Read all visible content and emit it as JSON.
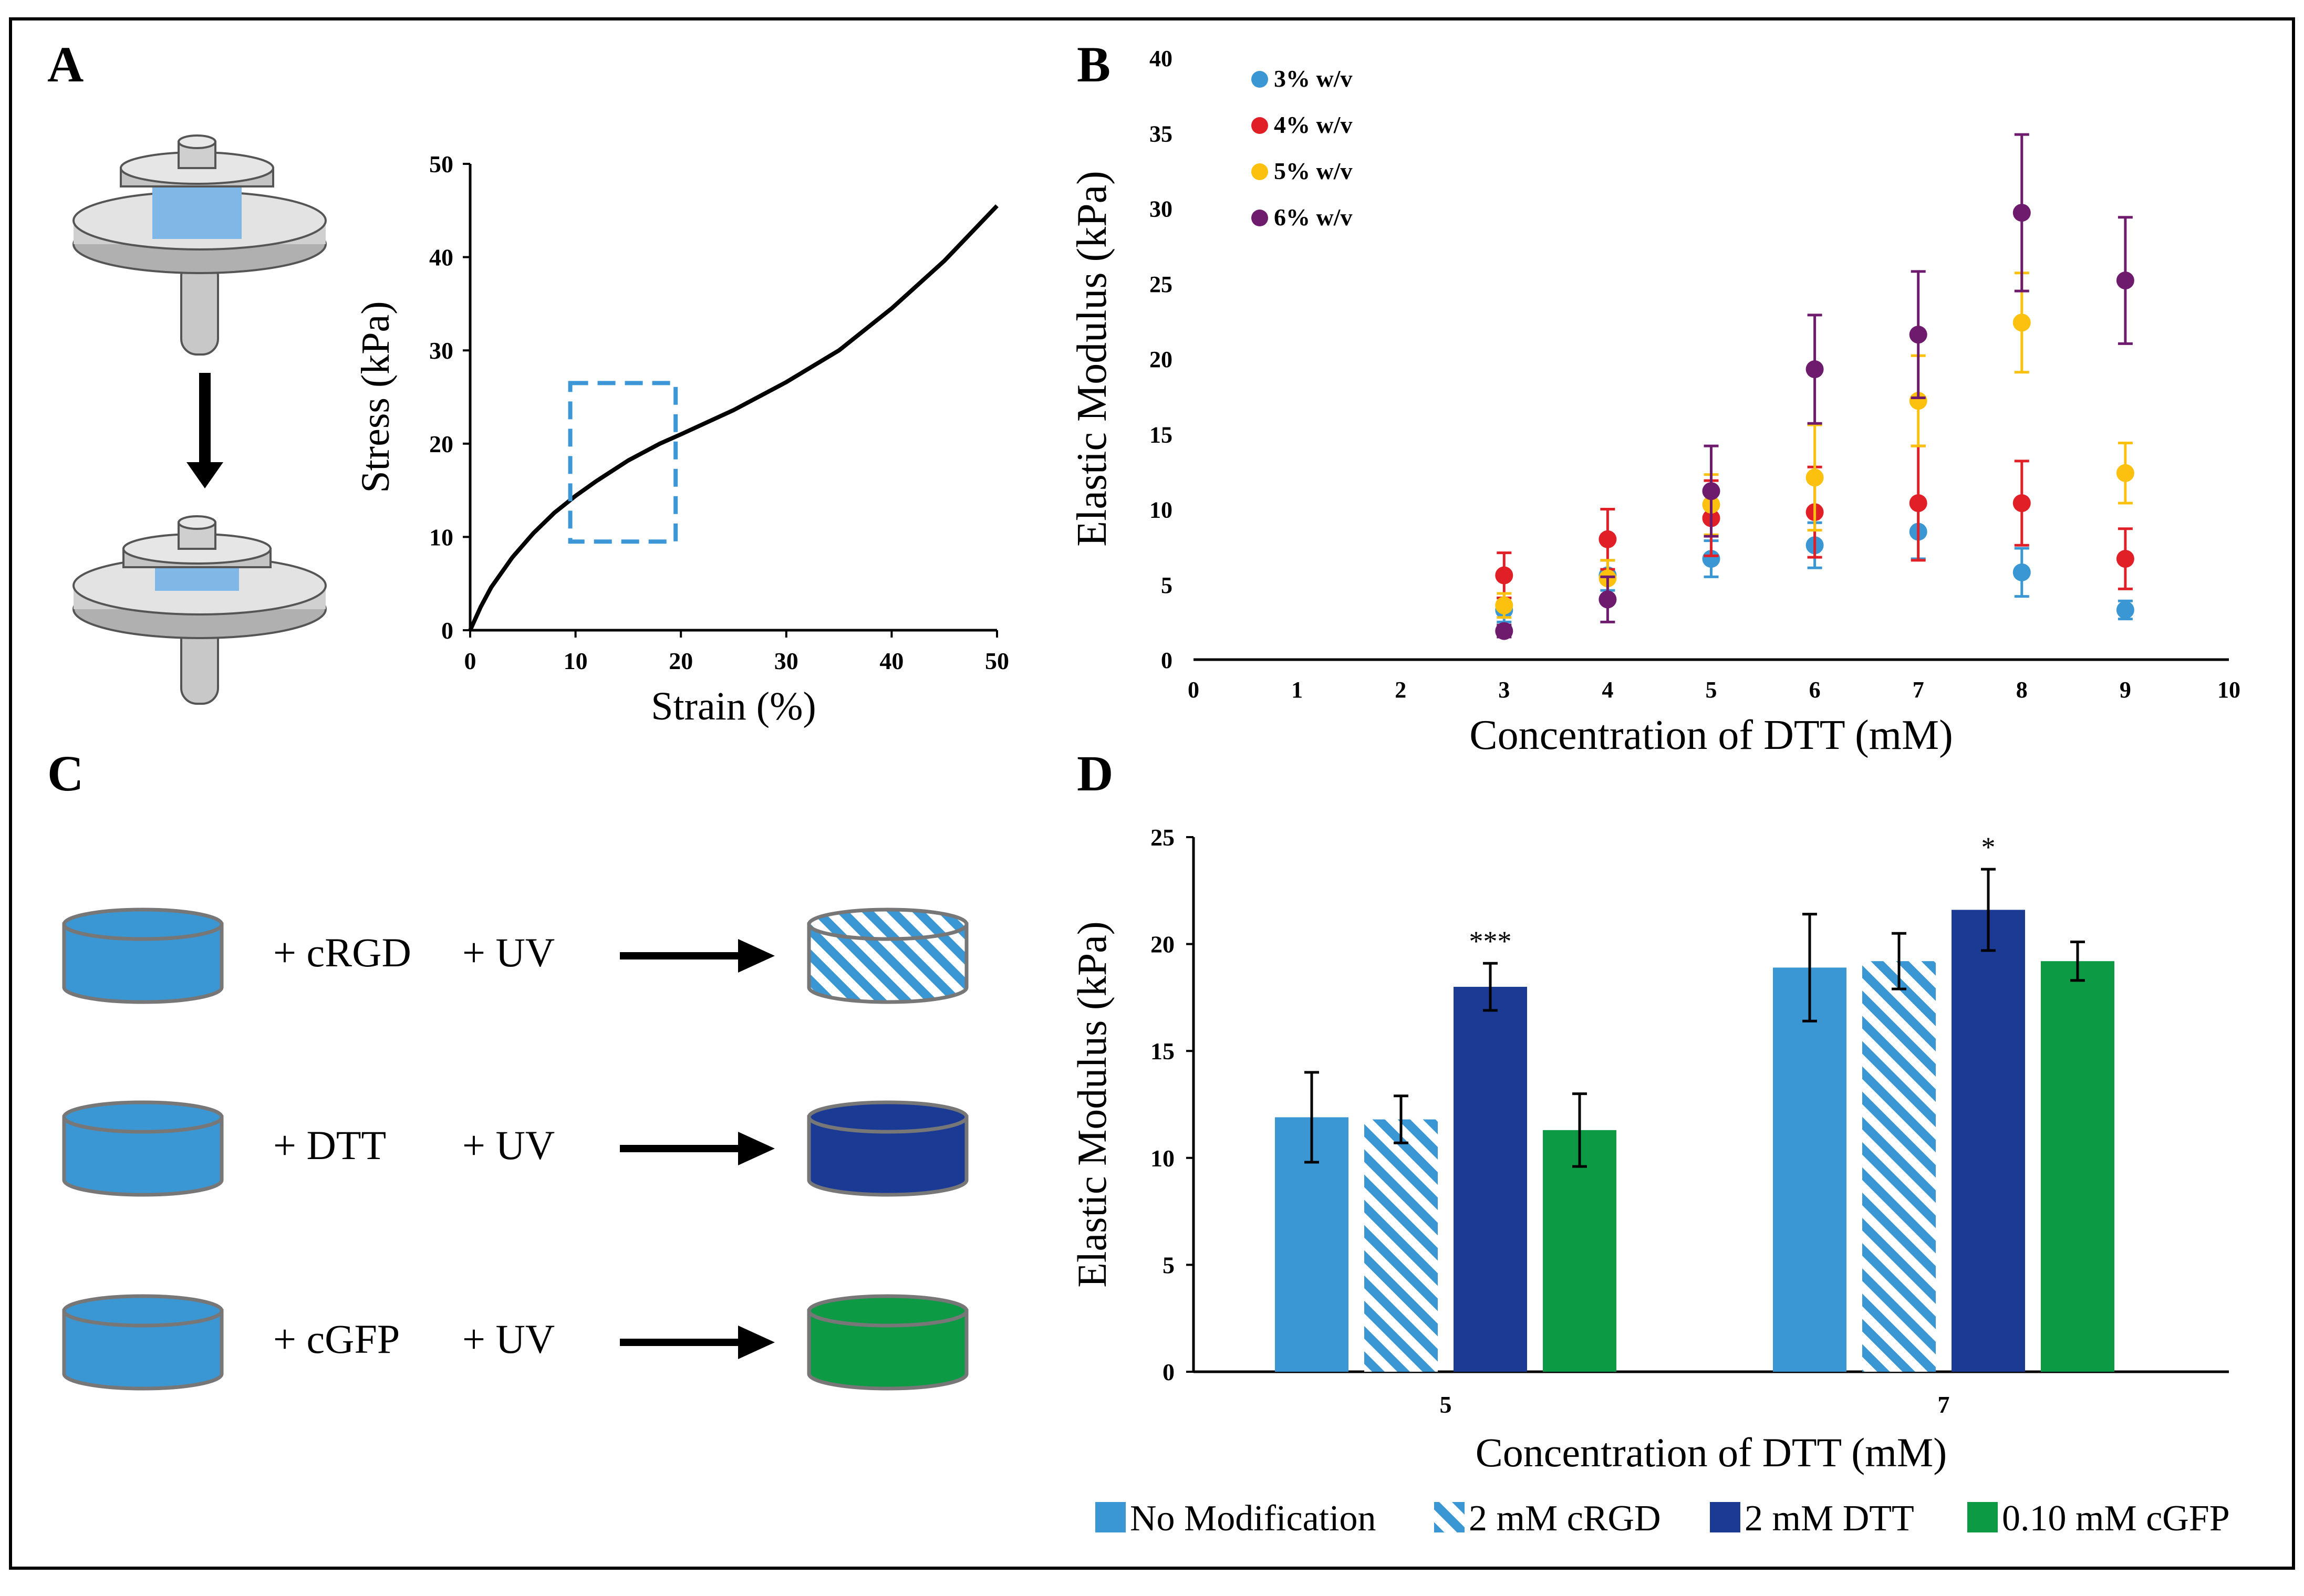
{
  "panels": {
    "A": {
      "label": "A"
    },
    "B": {
      "label": "B"
    },
    "C": {
      "label": "C"
    },
    "D": {
      "label": "D"
    }
  },
  "colors": {
    "light_blue": "#3b97d3",
    "dark_blue": "#1a3a93",
    "green": "#0c9a45",
    "red": "#e11f26",
    "yellow": "#fcc10e",
    "purple": "#6e1b6d",
    "dashed_box": "#3d97d6"
  },
  "schematic_c": {
    "rows": [
      {
        "reagent": "+ cRGD",
        "uv": "+ UV",
        "result": "hatched"
      },
      {
        "reagent": "+ DTT",
        "uv": "+ UV",
        "result": "dark_blue"
      },
      {
        "reagent": "+ cGFP",
        "uv": "+ UV",
        "result": "green"
      }
    ]
  },
  "chart_data": [
    {
      "panel": "A",
      "type": "line",
      "xlabel": "Strain (%)",
      "ylabel": "Stress (kPa)",
      "xlim": [
        0,
        50
      ],
      "ylim": [
        0,
        50
      ],
      "xticks": [
        "0",
        "10",
        "20",
        "30",
        "40",
        "50"
      ],
      "yticks": [
        "0",
        "10",
        "20",
        "30",
        "40",
        "50"
      ],
      "series": [
        {
          "name": "stress-strain",
          "x": [
            0,
            1,
            2,
            4,
            6,
            8,
            10,
            12,
            15,
            18,
            20,
            25,
            30,
            35,
            40,
            45,
            50
          ],
          "y": [
            0,
            2.5,
            4.6,
            7.8,
            10.4,
            12.6,
            14.4,
            16.0,
            18.2,
            20.0,
            21.0,
            23.6,
            26.6,
            30.0,
            34.5,
            39.6,
            45.5
          ]
        }
      ],
      "highlight_box": {
        "x": [
          9.5,
          19.5
        ],
        "y": [
          9.5,
          26.5
        ]
      }
    },
    {
      "panel": "B",
      "type": "scatter",
      "xlabel": "Concentration of DTT (mM)",
      "ylabel": "Elastic Modulus (kPa)",
      "xlim": [
        0,
        10
      ],
      "ylim": [
        0,
        40
      ],
      "xticks": [
        "0",
        "1",
        "2",
        "3",
        "4",
        "5",
        "6",
        "7",
        "8",
        "9",
        "10"
      ],
      "yticks": [
        "0",
        "5",
        "10",
        "15",
        "20",
        "25",
        "30",
        "35",
        "40"
      ],
      "legend_position": "top-left",
      "x": [
        3,
        4,
        5,
        6,
        7,
        8,
        9
      ],
      "series": [
        {
          "name": "3% w/v",
          "color": "#3b97d3",
          "values": [
            3.3,
            5.6,
            6.7,
            7.6,
            8.5,
            5.8,
            3.3
          ],
          "errors": [
            0.8,
            1.0,
            1.2,
            1.5,
            1.8,
            1.6,
            0.6
          ]
        },
        {
          "name": "4% w/v",
          "color": "#e11f26",
          "values": [
            5.6,
            8.0,
            9.4,
            9.8,
            10.4,
            10.4,
            6.7
          ],
          "errors": [
            1.5,
            2.0,
            2.5,
            3.0,
            3.8,
            2.8,
            2.0
          ]
        },
        {
          "name": "5% w/v",
          "color": "#fcc10e",
          "values": [
            3.6,
            5.4,
            10.3,
            12.1,
            17.2,
            22.4,
            12.4
          ],
          "errors": [
            0.8,
            1.2,
            2.0,
            3.5,
            3.0,
            3.3,
            2.0
          ]
        },
        {
          "name": "6% w/v",
          "color": "#6e1b6d",
          "values": [
            1.9,
            4.0,
            11.2,
            19.3,
            21.6,
            29.7,
            25.2
          ],
          "errors": [
            0.4,
            1.5,
            3.0,
            3.6,
            4.2,
            5.2,
            4.2
          ]
        }
      ]
    },
    {
      "panel": "D",
      "type": "bar",
      "xlabel": "Concentration of DTT (mM)",
      "ylabel": "Elastic Modulus (kPa)",
      "ylim": [
        0,
        25
      ],
      "yticks": [
        "0",
        "5",
        "10",
        "15",
        "20",
        "25"
      ],
      "categories": [
        "5",
        "7"
      ],
      "legend_position": "bottom",
      "series": [
        {
          "name": "No Modification",
          "color": "#3b97d3",
          "pattern": "solid",
          "values": [
            11.9,
            18.9
          ],
          "errors": [
            2.1,
            2.5
          ]
        },
        {
          "name": "2 mM cRGD",
          "color": "#3b97d3",
          "pattern": "hatched",
          "values": [
            11.8,
            19.2
          ],
          "errors": [
            1.1,
            1.3
          ]
        },
        {
          "name": "2 mM DTT",
          "color": "#1a3a93",
          "pattern": "solid",
          "values": [
            18.0,
            21.6
          ],
          "errors": [
            1.1,
            1.9
          ]
        },
        {
          "name": "0.10 mM cGFP",
          "color": "#0c9a45",
          "pattern": "solid",
          "values": [
            11.3,
            19.2
          ],
          "errors": [
            1.7,
            0.9
          ]
        }
      ],
      "annotations": [
        {
          "category": "5",
          "series": "2 mM DTT",
          "text": "***"
        },
        {
          "category": "7",
          "series": "2 mM DTT",
          "text": "*"
        }
      ]
    }
  ]
}
